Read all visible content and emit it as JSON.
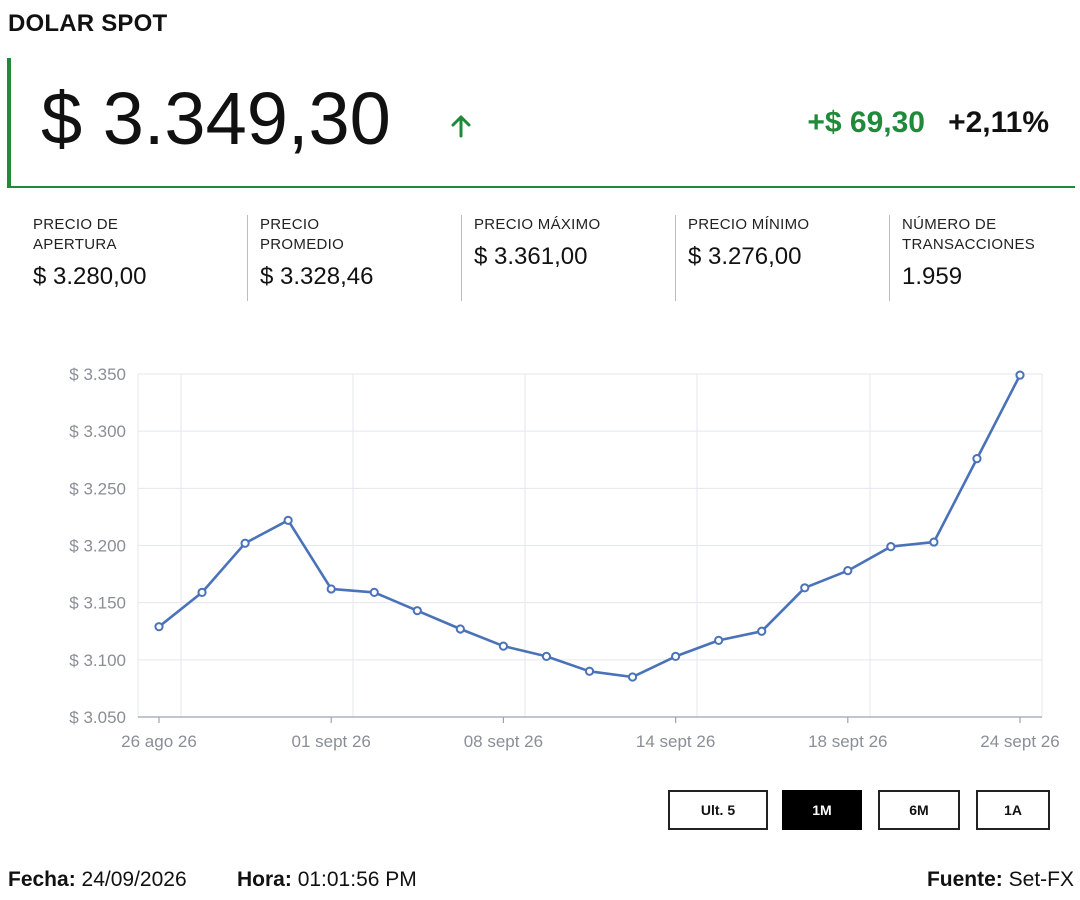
{
  "header": {
    "title": "DOLAR SPOT"
  },
  "quote": {
    "price": "$ 3.349,30",
    "change": "+$ 69,30",
    "change_pct": "+2,11%",
    "up_color": "#1f8a3a"
  },
  "stats": [
    {
      "label": "PRECIO DE APERTURA",
      "value": "$ 3.280,00"
    },
    {
      "label": "PRECIO PROMEDIO",
      "value": "$ 3.328,46"
    },
    {
      "label": "PRECIO MÁXIMO",
      "value": "$ 3.361,00"
    },
    {
      "label": "PRECIO MÍNIMO",
      "value": "$ 3.276,00"
    },
    {
      "label": "NÚMERO DE TRANSACCIONES",
      "value": "1.959"
    }
  ],
  "chart_data": {
    "type": "line",
    "ylim": [
      3050,
      3350
    ],
    "y_ticks": [
      "$ 3.350",
      "$ 3.300",
      "$ 3.250",
      "$ 3.200",
      "$ 3.150",
      "$ 3.100",
      "$ 3.050"
    ],
    "y_tick_values": [
      3350,
      3300,
      3250,
      3200,
      3150,
      3100,
      3050
    ],
    "x_tick_labels": [
      "26 ago 26",
      "01 sept 26",
      "08 sept 26",
      "14 sept 26",
      "18 sept 26",
      "24 sept 26"
    ],
    "x_tick_indices": [
      0,
      4,
      8,
      12,
      16,
      20
    ],
    "grid": true,
    "line_color": "#4a72b8",
    "series": [
      {
        "values": [
          3129,
          3159,
          3202,
          3222,
          3162,
          3159,
          3143,
          3127,
          3112,
          3103,
          3090,
          3085,
          3103,
          3117,
          3125,
          3163,
          3178,
          3199,
          3203,
          3276,
          3349
        ]
      }
    ]
  },
  "range_buttons": [
    {
      "label": "Ult. 5",
      "active": false
    },
    {
      "label": "1M",
      "active": true
    },
    {
      "label": "6M",
      "active": false
    },
    {
      "label": "1A",
      "active": false
    }
  ],
  "footer": {
    "date_label": "Fecha:",
    "date": "24/09/2026",
    "time_label": "Hora:",
    "time": "01:01:56 PM",
    "source_label": "Fuente:",
    "source": "Set-FX"
  }
}
